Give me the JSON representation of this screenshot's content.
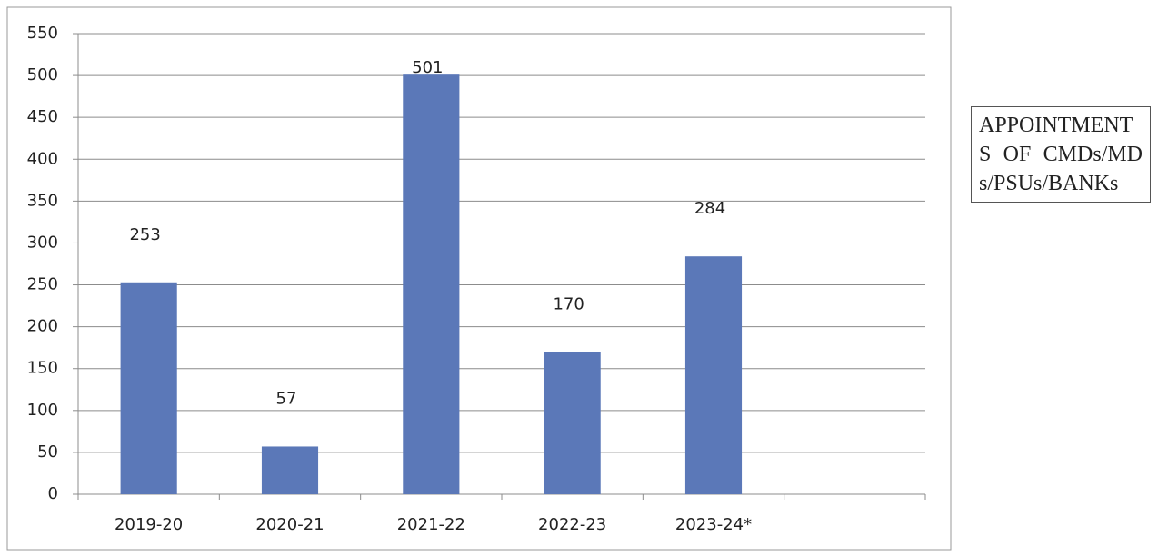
{
  "chart_data": {
    "type": "bar",
    "categories": [
      "2019-20",
      "2020-21",
      "2021-22",
      "2022-23",
      "2023-24*",
      null
    ],
    "series": [
      {
        "name": "APPOINTMENTS OF CMDs/MDs/PSUs/BANKs",
        "color": "#5b78b8",
        "values": [
          253,
          57,
          501,
          170,
          284,
          null
        ]
      }
    ],
    "ylim": [
      0,
      550
    ],
    "yticks": [
      0,
      50,
      100,
      150,
      200,
      250,
      300,
      350,
      400,
      450,
      500,
      550
    ],
    "grid": true,
    "legend": "right"
  }
}
